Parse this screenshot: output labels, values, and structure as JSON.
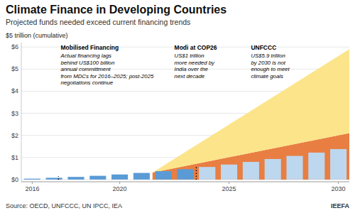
{
  "chart_data": {
    "type": "bar",
    "title": "Climate Finance in Developing Countries",
    "subtitle": "Projected funds needed exceed current financing trends",
    "ylabel": "$5 trillion (cumulative)",
    "source": "Source: OECD, UNFCCC, UN IPCC, IEA",
    "credit": "IEEFA",
    "xlim": [
      2015.5,
      2030.5
    ],
    "xticks": [
      2016,
      2020,
      2025,
      2030
    ],
    "ylim": [
      -0.1,
      6.2
    ],
    "yticks": [
      {
        "value": 0,
        "label": "$0"
      },
      {
        "value": 1,
        "label": "$1"
      },
      {
        "value": 2,
        "label": "$2"
      },
      {
        "value": 3,
        "label": "$3"
      },
      {
        "value": 4,
        "label": "$4"
      },
      {
        "value": 5,
        "label": "$5"
      },
      {
        "value": 6,
        "label": "$6"
      }
    ],
    "grid": true,
    "series": [
      {
        "type": "area",
        "color": "#daeaf7",
        "x": [
          2024.5,
          2030.5
        ],
        "values": [
          1.05,
          1.05
        ],
        "base": [
          0,
          0
        ]
      },
      {
        "type": "bar",
        "x": [
          2016,
          2017,
          2018,
          2019,
          2020,
          2021,
          2022,
          2023,
          2024,
          2025,
          2026,
          2027,
          2028,
          2029,
          2030
        ],
        "values": [
          0.04,
          0.08,
          0.12,
          0.17,
          0.23,
          0.3,
          0.38,
          0.47,
          0.57,
          0.68,
          0.8,
          0.93,
          1.07,
          1.22,
          1.38
        ],
        "colors": [
          "#5b9bd5",
          "#5b9bd5",
          "#5b9bd5",
          "#5b9bd5",
          "#5b9bd5",
          "#5b9bd5",
          "#5b9bd5",
          "#5b9bd5",
          "#bdd7ee",
          "#bdd7ee",
          "#bdd7ee",
          "#bdd7ee",
          "#bdd7ee",
          "#bdd7ee",
          "#bdd7ee"
        ]
      },
      {
        "type": "area",
        "color": "#e8793a",
        "x": [
          2021.5,
          2030.5
        ],
        "values": [
          0.32,
          2.1
        ],
        "base": [
          0,
          0
        ]
      },
      {
        "type": "area",
        "color": "#fce385",
        "x": [
          2021.5,
          2030.5
        ],
        "values": [
          0.32,
          5.9
        ],
        "base": [
          0.32,
          2.1
        ]
      },
      {
        "type": "line",
        "line_style": "dotted",
        "color": "#000000",
        "x": [
          2017.2,
          2017.2
        ],
        "values": [
          0,
          0.15
        ]
      },
      {
        "type": "line",
        "line_style": "dotted",
        "color": "#000000",
        "x": [
          2023.5,
          2023.5
        ],
        "values": [
          0,
          0.6
        ]
      }
    ],
    "annotations": [
      {
        "x": 2017.3,
        "title": "Mobilised Financing",
        "text": "Actual financing lags\nbehind US$100 billion\nannual committment\nfrom MDCs for 2016–2025; post-2025\nnegotiations continue"
      },
      {
        "x": 2022.5,
        "title": "Modi at COP26",
        "text": "US$1 trillion\nmore needed by\nIndia over the\nnext decade"
      },
      {
        "x": 2026.0,
        "title": "UNFCCC",
        "text": "US$5.9 trillion\nby 2030 is not\nenough to meet\nclimate goals"
      }
    ]
  }
}
